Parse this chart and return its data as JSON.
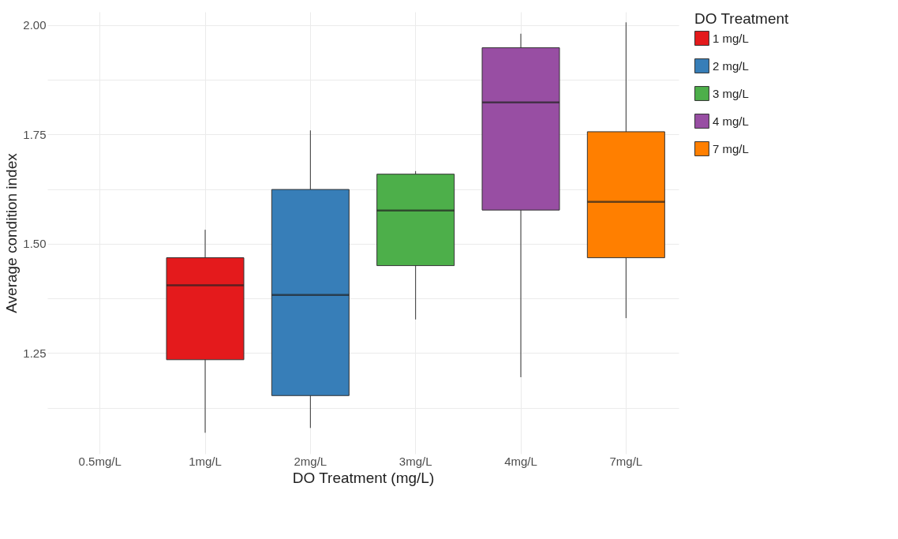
{
  "chart_data": {
    "type": "box",
    "xlabel": "DO Treatment (mg/L)",
    "ylabel": "Average condition index",
    "legend_title": "DO Treatment",
    "categories": [
      "0.5mg/L",
      "1mg/L",
      "2mg/L",
      "3mg/L",
      "4mg/L",
      "7mg/L"
    ],
    "series": [
      {
        "name": "1 mg/L",
        "color": "#e41a1c",
        "boxes": [
          null,
          {
            "low": 1.068,
            "q1": 1.235,
            "median": 1.405,
            "q3": 1.468,
            "high": 1.532
          },
          null,
          null,
          null,
          null
        ]
      },
      {
        "name": "2 mg/L",
        "color": "#377eb8",
        "boxes": [
          null,
          null,
          {
            "low": 1.079,
            "q1": 1.153,
            "median": 1.383,
            "q3": 1.624,
            "high": 1.759
          },
          null,
          null,
          null
        ]
      },
      {
        "name": "3 mg/L",
        "color": "#4daf4a",
        "boxes": [
          null,
          null,
          null,
          {
            "low": 1.327,
            "q1": 1.45,
            "median": 1.576,
            "q3": 1.659,
            "high": 1.666
          },
          null,
          null
        ]
      },
      {
        "name": "4 mg/L",
        "color": "#984ea3",
        "boxes": [
          null,
          null,
          null,
          null,
          {
            "low": 1.195,
            "q1": 1.577,
            "median": 1.823,
            "q3": 1.948,
            "high": 1.98
          },
          null
        ]
      },
      {
        "name": "7 mg/L",
        "color": "#ff7f00",
        "boxes": [
          null,
          null,
          null,
          null,
          null,
          {
            "low": 1.33,
            "q1": 1.468,
            "median": 1.596,
            "q3": 1.756,
            "high": 2.006
          }
        ]
      }
    ],
    "ylim": [
      1.02,
      2.03
    ],
    "yticks": [
      {
        "value": 1.125,
        "label": null
      },
      {
        "value": 1.25,
        "label": "1.25"
      },
      {
        "value": 1.375,
        "label": null
      },
      {
        "value": 1.5,
        "label": "1.50"
      },
      {
        "value": 1.625,
        "label": null
      },
      {
        "value": 1.75,
        "label": "1.75"
      },
      {
        "value": 1.875,
        "label": null
      },
      {
        "value": 2.0,
        "label": "2.00"
      }
    ],
    "grid": true,
    "legend": "right"
  }
}
